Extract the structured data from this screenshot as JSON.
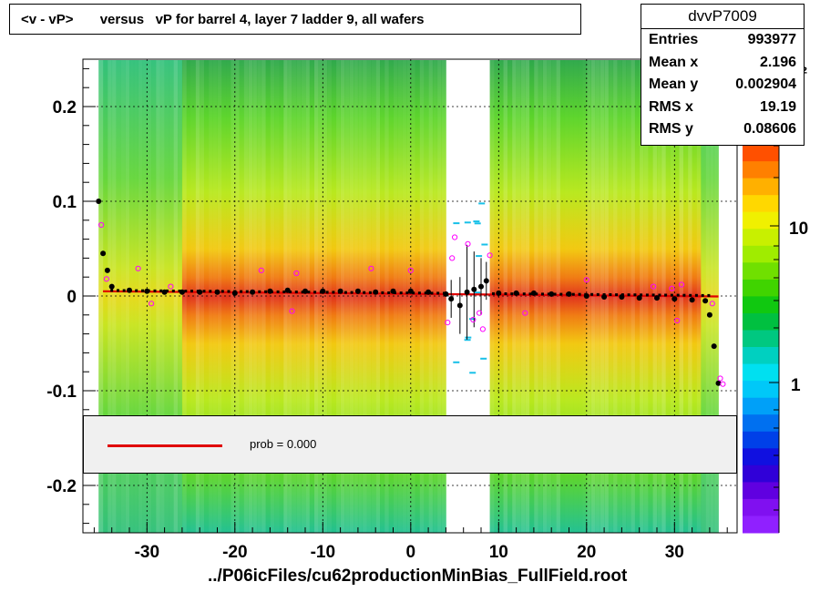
{
  "title": "<v - vP>       versus   vP for barrel 4, layer 7 ladder 9, all wafers",
  "stats": {
    "name": "dvvP7009",
    "rows": [
      {
        "label": "Entries",
        "value": "993977"
      },
      {
        "label": "Mean x",
        "value": "2.196"
      },
      {
        "label": "Mean y",
        "value": "0.002904"
      },
      {
        "label": "RMS x",
        "value": "19.19"
      },
      {
        "label": "RMS y",
        "value": "0.08606"
      }
    ]
  },
  "legend": {
    "text": "prob = 0.000"
  },
  "colors": {
    "fit_line": "#e00000",
    "profile_points": "#000000",
    "open_markers": "#ff00ff"
  },
  "chart_data": {
    "type": "heatmap",
    "xlabel": "../P06icFiles/cu62productionMinBias_FullField.root",
    "xlim": [
      -37,
      37.5
    ],
    "ylim": [
      -0.25,
      0.25
    ],
    "x_ticks": [
      -30,
      -20,
      -10,
      0,
      10,
      20,
      30
    ],
    "y_ticks": [
      0.2,
      0.1,
      0,
      -0.1,
      -0.2
    ],
    "y_tick_labels": [
      "0.2",
      "0.1",
      "0",
      "-0.1",
      "-0.2"
    ],
    "grid": true,
    "colorbar": {
      "scale": "log",
      "tick_labels": [
        "1",
        "10"
      ],
      "top_label_fragment": "0²"
    },
    "empty_band_x": [
      4.3,
      8.6
    ],
    "fit_line": {
      "x": [
        -35,
        35
      ],
      "y": [
        0.005,
        -0.0005
      ]
    },
    "profile_points": {
      "x": [
        -35.5,
        -35.0,
        -34.5,
        -34.0,
        -32,
        -30,
        -28,
        -26,
        -24,
        -22,
        -20,
        -18,
        -16,
        -14,
        -12,
        -10,
        -8,
        -6,
        -4,
        -2,
        0,
        2,
        4,
        4.6,
        5.6,
        6.4,
        7.2,
        8.0,
        8.6,
        10,
        12,
        14,
        16,
        18,
        20,
        22,
        24,
        26,
        28,
        30,
        32,
        33.5,
        34.0,
        34.5,
        35.0
      ],
      "y": [
        0.1,
        0.045,
        0.027,
        0.01,
        0.006,
        0.005,
        0.004,
        0.004,
        0.004,
        0.004,
        0.003,
        0.004,
        0.005,
        0.006,
        0.005,
        0.005,
        0.005,
        0.005,
        0.004,
        0.005,
        0.005,
        0.004,
        0.002,
        -0.003,
        -0.01,
        0.004,
        0.007,
        0.01,
        0.016,
        0.003,
        0.003,
        0.003,
        0.002,
        0.002,
        0.0,
        -0.001,
        -0.001,
        -0.002,
        -0.002,
        -0.003,
        -0.004,
        -0.005,
        -0.02,
        -0.053,
        -0.092
      ],
      "errors": [
        0.0,
        0.0,
        0.0,
        0.0,
        0.0,
        0.0,
        0.0,
        0.0,
        0.0,
        0.0,
        0.0,
        0.0,
        0.0,
        0.0,
        0.0,
        0.0,
        0.0,
        0.0,
        0.0,
        0.0,
        0.0,
        0.0,
        0.0,
        0.02,
        0.03,
        0.05,
        0.04,
        0.03,
        0.02,
        0.0,
        0.0,
        0.0,
        0.0,
        0.0,
        0.0,
        0.0,
        0.0,
        0.0,
        0.0,
        0.0,
        0.0,
        0.0,
        0.0,
        0.0,
        0.0
      ]
    },
    "open_markers": {
      "x": [
        -35.2,
        -34.6,
        -31.0,
        -29.5,
        -27.3,
        -17.0,
        -13.0,
        -13.5,
        -4.5,
        0.0,
        4.2,
        4.7,
        5.0,
        6.5,
        7.1,
        7.8,
        8.2,
        9.0,
        13.0,
        20.0,
        27.6,
        29.7,
        30.3,
        30.8,
        34.3,
        35.2,
        35.5
      ],
      "y": [
        0.075,
        0.018,
        0.029,
        -0.008,
        0.01,
        0.027,
        0.024,
        -0.016,
        0.029,
        0.027,
        -0.028,
        0.04,
        0.062,
        0.055,
        -0.025,
        -0.018,
        -0.035,
        0.043,
        -0.018,
        0.017,
        0.01,
        0.008,
        -0.026,
        0.012,
        -0.008,
        -0.087,
        -0.093
      ]
    }
  }
}
